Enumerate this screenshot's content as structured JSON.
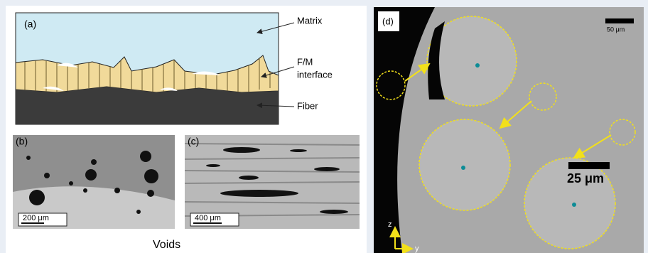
{
  "panel_a": {
    "label": "(a)",
    "matrix": "Matrix",
    "interface": [
      "F/M",
      "interface"
    ],
    "fiber": "Fiber"
  },
  "panel_b": {
    "label": "(b)",
    "scale": "200 μm"
  },
  "panel_c": {
    "label": "(c)",
    "scale": "400 μm"
  },
  "caption": "Voids",
  "panel_d": {
    "label": "(d)",
    "scale_small": "50 μm",
    "scale_large": "25 μm",
    "axis_z": "z",
    "axis_y": "y"
  }
}
